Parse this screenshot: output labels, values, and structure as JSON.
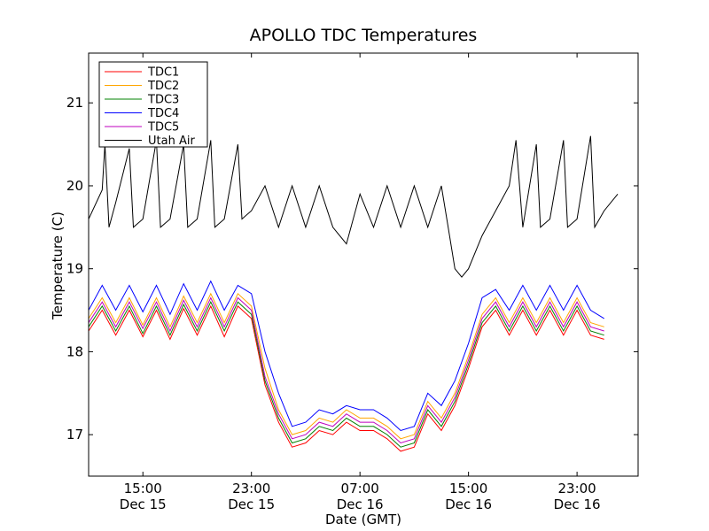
{
  "chart_data": {
    "type": "line",
    "title": "APOLLO TDC Temperatures",
    "xlabel": "Date (GMT)",
    "ylabel": "Temperature (C)",
    "x_unit": "hours since Dec 15 08:00 GMT",
    "xlim": [
      3.0,
      43.5
    ],
    "ylim": [
      16.5,
      21.6
    ],
    "y_ticks": [
      17,
      18,
      19,
      20,
      21
    ],
    "x_ticks": [
      {
        "x": 7,
        "time": "15:00",
        "date": "Dec 15"
      },
      {
        "x": 15,
        "time": "23:00",
        "date": "Dec 15"
      },
      {
        "x": 23,
        "time": "07:00",
        "date": "Dec 16"
      },
      {
        "x": 31,
        "time": "15:00",
        "date": "Dec 16"
      },
      {
        "x": 39,
        "time": "23:00",
        "date": "Dec 16"
      }
    ],
    "legend_position": "top-left",
    "series": [
      {
        "name": "TDC1",
        "color": "#ff0000",
        "points": [
          [
            3,
            18.25
          ],
          [
            4,
            18.5
          ],
          [
            5,
            18.2
          ],
          [
            6,
            18.5
          ],
          [
            7,
            18.18
          ],
          [
            8,
            18.5
          ],
          [
            9,
            18.15
          ],
          [
            10,
            18.52
          ],
          [
            11,
            18.2
          ],
          [
            12,
            18.55
          ],
          [
            13,
            18.18
          ],
          [
            14,
            18.55
          ],
          [
            15,
            18.4
          ],
          [
            16,
            17.6
          ],
          [
            17,
            17.15
          ],
          [
            18,
            16.85
          ],
          [
            19,
            16.9
          ],
          [
            20,
            17.05
          ],
          [
            21,
            17.0
          ],
          [
            22,
            17.15
          ],
          [
            23,
            17.05
          ],
          [
            24,
            17.05
          ],
          [
            25,
            16.95
          ],
          [
            26,
            16.8
          ],
          [
            27,
            16.85
          ],
          [
            28,
            17.25
          ],
          [
            29,
            17.05
          ],
          [
            30,
            17.35
          ],
          [
            31,
            17.8
          ],
          [
            32,
            18.3
          ],
          [
            33,
            18.5
          ],
          [
            34,
            18.2
          ],
          [
            35,
            18.5
          ],
          [
            36,
            18.2
          ],
          [
            37,
            18.5
          ],
          [
            38,
            18.2
          ],
          [
            39,
            18.5
          ],
          [
            40,
            18.2
          ],
          [
            41,
            18.15
          ]
        ]
      },
      {
        "name": "TDC2",
        "color": "#ffa500",
        "points": [
          [
            3,
            18.4
          ],
          [
            4,
            18.65
          ],
          [
            5,
            18.35
          ],
          [
            6,
            18.65
          ],
          [
            7,
            18.32
          ],
          [
            8,
            18.65
          ],
          [
            9,
            18.3
          ],
          [
            10,
            18.67
          ],
          [
            11,
            18.35
          ],
          [
            12,
            18.7
          ],
          [
            13,
            18.35
          ],
          [
            14,
            18.7
          ],
          [
            15,
            18.55
          ],
          [
            16,
            17.8
          ],
          [
            17,
            17.3
          ],
          [
            18,
            17.0
          ],
          [
            19,
            17.05
          ],
          [
            20,
            17.2
          ],
          [
            21,
            17.15
          ],
          [
            22,
            17.3
          ],
          [
            23,
            17.2
          ],
          [
            24,
            17.2
          ],
          [
            25,
            17.1
          ],
          [
            26,
            16.95
          ],
          [
            27,
            17.0
          ],
          [
            28,
            17.4
          ],
          [
            29,
            17.2
          ],
          [
            30,
            17.5
          ],
          [
            31,
            17.95
          ],
          [
            32,
            18.45
          ],
          [
            33,
            18.65
          ],
          [
            34,
            18.35
          ],
          [
            35,
            18.65
          ],
          [
            36,
            18.35
          ],
          [
            37,
            18.65
          ],
          [
            38,
            18.35
          ],
          [
            39,
            18.65
          ],
          [
            40,
            18.35
          ],
          [
            41,
            18.3
          ]
        ]
      },
      {
        "name": "TDC3",
        "color": "#008000",
        "points": [
          [
            3,
            18.3
          ],
          [
            4,
            18.55
          ],
          [
            5,
            18.25
          ],
          [
            6,
            18.55
          ],
          [
            7,
            18.22
          ],
          [
            8,
            18.55
          ],
          [
            9,
            18.2
          ],
          [
            10,
            18.57
          ],
          [
            11,
            18.25
          ],
          [
            12,
            18.6
          ],
          [
            13,
            18.25
          ],
          [
            14,
            18.6
          ],
          [
            15,
            18.45
          ],
          [
            16,
            17.65
          ],
          [
            17,
            17.2
          ],
          [
            18,
            16.9
          ],
          [
            19,
            16.95
          ],
          [
            20,
            17.1
          ],
          [
            21,
            17.05
          ],
          [
            22,
            17.2
          ],
          [
            23,
            17.1
          ],
          [
            24,
            17.1
          ],
          [
            25,
            17.0
          ],
          [
            26,
            16.85
          ],
          [
            27,
            16.9
          ],
          [
            28,
            17.3
          ],
          [
            29,
            17.1
          ],
          [
            30,
            17.4
          ],
          [
            31,
            17.85
          ],
          [
            32,
            18.35
          ],
          [
            33,
            18.55
          ],
          [
            34,
            18.25
          ],
          [
            35,
            18.55
          ],
          [
            36,
            18.25
          ],
          [
            37,
            18.55
          ],
          [
            38,
            18.25
          ],
          [
            39,
            18.55
          ],
          [
            40,
            18.25
          ],
          [
            41,
            18.2
          ]
        ]
      },
      {
        "name": "TDC4",
        "color": "#0000ff",
        "points": [
          [
            3,
            18.5
          ],
          [
            4,
            18.8
          ],
          [
            5,
            18.5
          ],
          [
            6,
            18.8
          ],
          [
            7,
            18.48
          ],
          [
            8,
            18.8
          ],
          [
            9,
            18.45
          ],
          [
            10,
            18.82
          ],
          [
            11,
            18.5
          ],
          [
            12,
            18.85
          ],
          [
            13,
            18.5
          ],
          [
            14,
            18.8
          ],
          [
            15,
            18.7
          ],
          [
            16,
            18.0
          ],
          [
            17,
            17.5
          ],
          [
            18,
            17.1
          ],
          [
            19,
            17.15
          ],
          [
            20,
            17.3
          ],
          [
            21,
            17.25
          ],
          [
            22,
            17.35
          ],
          [
            23,
            17.3
          ],
          [
            24,
            17.3
          ],
          [
            25,
            17.2
          ],
          [
            26,
            17.05
          ],
          [
            27,
            17.1
          ],
          [
            28,
            17.5
          ],
          [
            29,
            17.35
          ],
          [
            30,
            17.65
          ],
          [
            31,
            18.1
          ],
          [
            32,
            18.65
          ],
          [
            33,
            18.75
          ],
          [
            34,
            18.5
          ],
          [
            35,
            18.8
          ],
          [
            36,
            18.5
          ],
          [
            37,
            18.8
          ],
          [
            38,
            18.5
          ],
          [
            39,
            18.8
          ],
          [
            40,
            18.5
          ],
          [
            41,
            18.4
          ]
        ]
      },
      {
        "name": "TDC5",
        "color": "#bf00bf",
        "points": [
          [
            3,
            18.35
          ],
          [
            4,
            18.6
          ],
          [
            5,
            18.3
          ],
          [
            6,
            18.6
          ],
          [
            7,
            18.28
          ],
          [
            8,
            18.6
          ],
          [
            9,
            18.25
          ],
          [
            10,
            18.62
          ],
          [
            11,
            18.3
          ],
          [
            12,
            18.65
          ],
          [
            13,
            18.3
          ],
          [
            14,
            18.65
          ],
          [
            15,
            18.5
          ],
          [
            16,
            17.7
          ],
          [
            17,
            17.25
          ],
          [
            18,
            16.95
          ],
          [
            19,
            17.0
          ],
          [
            20,
            17.15
          ],
          [
            21,
            17.1
          ],
          [
            22,
            17.25
          ],
          [
            23,
            17.15
          ],
          [
            24,
            17.15
          ],
          [
            25,
            17.05
          ],
          [
            26,
            16.9
          ],
          [
            27,
            16.95
          ],
          [
            28,
            17.35
          ],
          [
            29,
            17.15
          ],
          [
            30,
            17.45
          ],
          [
            31,
            17.9
          ],
          [
            32,
            18.4
          ],
          [
            33,
            18.6
          ],
          [
            34,
            18.3
          ],
          [
            35,
            18.6
          ],
          [
            36,
            18.3
          ],
          [
            37,
            18.6
          ],
          [
            38,
            18.3
          ],
          [
            39,
            18.6
          ],
          [
            40,
            18.3
          ],
          [
            41,
            18.25
          ]
        ]
      },
      {
        "name": "Utah Air",
        "color": "#000000",
        "points": [
          [
            3,
            19.6
          ],
          [
            4,
            19.95
          ],
          [
            4.2,
            20.5
          ],
          [
            4.5,
            19.5
          ],
          [
            5,
            19.8
          ],
          [
            6,
            20.45
          ],
          [
            6.3,
            19.5
          ],
          [
            7,
            19.6
          ],
          [
            8,
            20.55
          ],
          [
            8.3,
            19.5
          ],
          [
            9,
            19.6
          ],
          [
            10,
            20.5
          ],
          [
            10.3,
            19.5
          ],
          [
            11,
            19.6
          ],
          [
            12,
            20.55
          ],
          [
            12.3,
            19.5
          ],
          [
            13,
            19.6
          ],
          [
            14,
            20.5
          ],
          [
            14.3,
            19.6
          ],
          [
            15,
            19.7
          ],
          [
            16,
            20.0
          ],
          [
            17,
            19.5
          ],
          [
            18,
            20.0
          ],
          [
            19,
            19.5
          ],
          [
            20,
            20.0
          ],
          [
            21,
            19.5
          ],
          [
            22,
            19.3
          ],
          [
            23,
            19.9
          ],
          [
            24,
            19.5
          ],
          [
            25,
            20.0
          ],
          [
            26,
            19.5
          ],
          [
            27,
            20.0
          ],
          [
            28,
            19.5
          ],
          [
            29,
            20.0
          ],
          [
            29.5,
            19.5
          ],
          [
            30,
            19.0
          ],
          [
            30.5,
            18.9
          ],
          [
            31,
            19.0
          ],
          [
            32,
            19.4
          ],
          [
            33,
            19.7
          ],
          [
            34,
            20.0
          ],
          [
            34.5,
            20.55
          ],
          [
            35,
            19.5
          ],
          [
            36,
            20.5
          ],
          [
            36.3,
            19.5
          ],
          [
            37,
            19.6
          ],
          [
            38,
            20.55
          ],
          [
            38.3,
            19.5
          ],
          [
            39,
            19.6
          ],
          [
            40,
            20.6
          ],
          [
            40.3,
            19.5
          ],
          [
            41,
            19.7
          ],
          [
            42,
            19.9
          ]
        ]
      }
    ]
  }
}
